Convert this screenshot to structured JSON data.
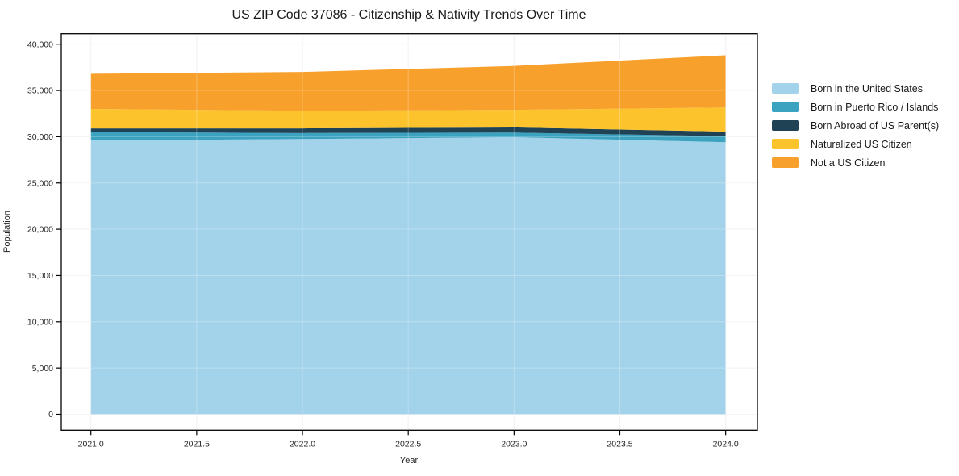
{
  "title": "US ZIP Code 37086 - Citizenship & Nativity Trends Over Time",
  "chart_data": {
    "type": "area",
    "stacked": true,
    "title": "US ZIP Code 37086 - Citizenship & Nativity Trends Over Time",
    "xlabel": "Year",
    "ylabel": "Population",
    "x": [
      2021,
      2022,
      2023,
      2024
    ],
    "series": [
      {
        "name": "Born in the United States",
        "color": "#a3d3ea",
        "values": [
          29600,
          29750,
          29950,
          29400
        ]
      },
      {
        "name": "Born in Puerto Rico / Islands",
        "color": "#3ba3c0",
        "values": [
          900,
          650,
          500,
          650
        ]
      },
      {
        "name": "Born Abroad of US Parent(s)",
        "color": "#1f4254",
        "values": [
          400,
          500,
          550,
          500
        ]
      },
      {
        "name": "Naturalized US Citizen",
        "color": "#fcc32d",
        "values": [
          2100,
          1900,
          1900,
          2600
        ]
      },
      {
        "name": "Not a US Citizen",
        "color": "#f8a02c",
        "values": [
          3800,
          4200,
          4750,
          5650
        ]
      }
    ],
    "stacked_totals": [
      36800,
      37000,
      37650,
      38800
    ],
    "x_tick_values": [
      2021.0,
      2021.5,
      2022.0,
      2022.5,
      2023.0,
      2023.5,
      2024.0
    ],
    "x_tick_labels": [
      "2021.0",
      "2021.5",
      "2022.0",
      "2022.5",
      "2023.0",
      "2023.5",
      "2024.0"
    ],
    "y_tick_values": [
      0,
      5000,
      10000,
      15000,
      20000,
      25000,
      30000,
      35000,
      40000
    ],
    "y_tick_labels": [
      "0",
      "5,000",
      "10,000",
      "15,000",
      "20,000",
      "25,000",
      "30,000",
      "35,000",
      "40,000"
    ],
    "xlim": [
      2020.86,
      2024.15
    ],
    "ylim": [
      -1726,
      41134
    ],
    "grid": true,
    "legend_position": "right-outside"
  }
}
